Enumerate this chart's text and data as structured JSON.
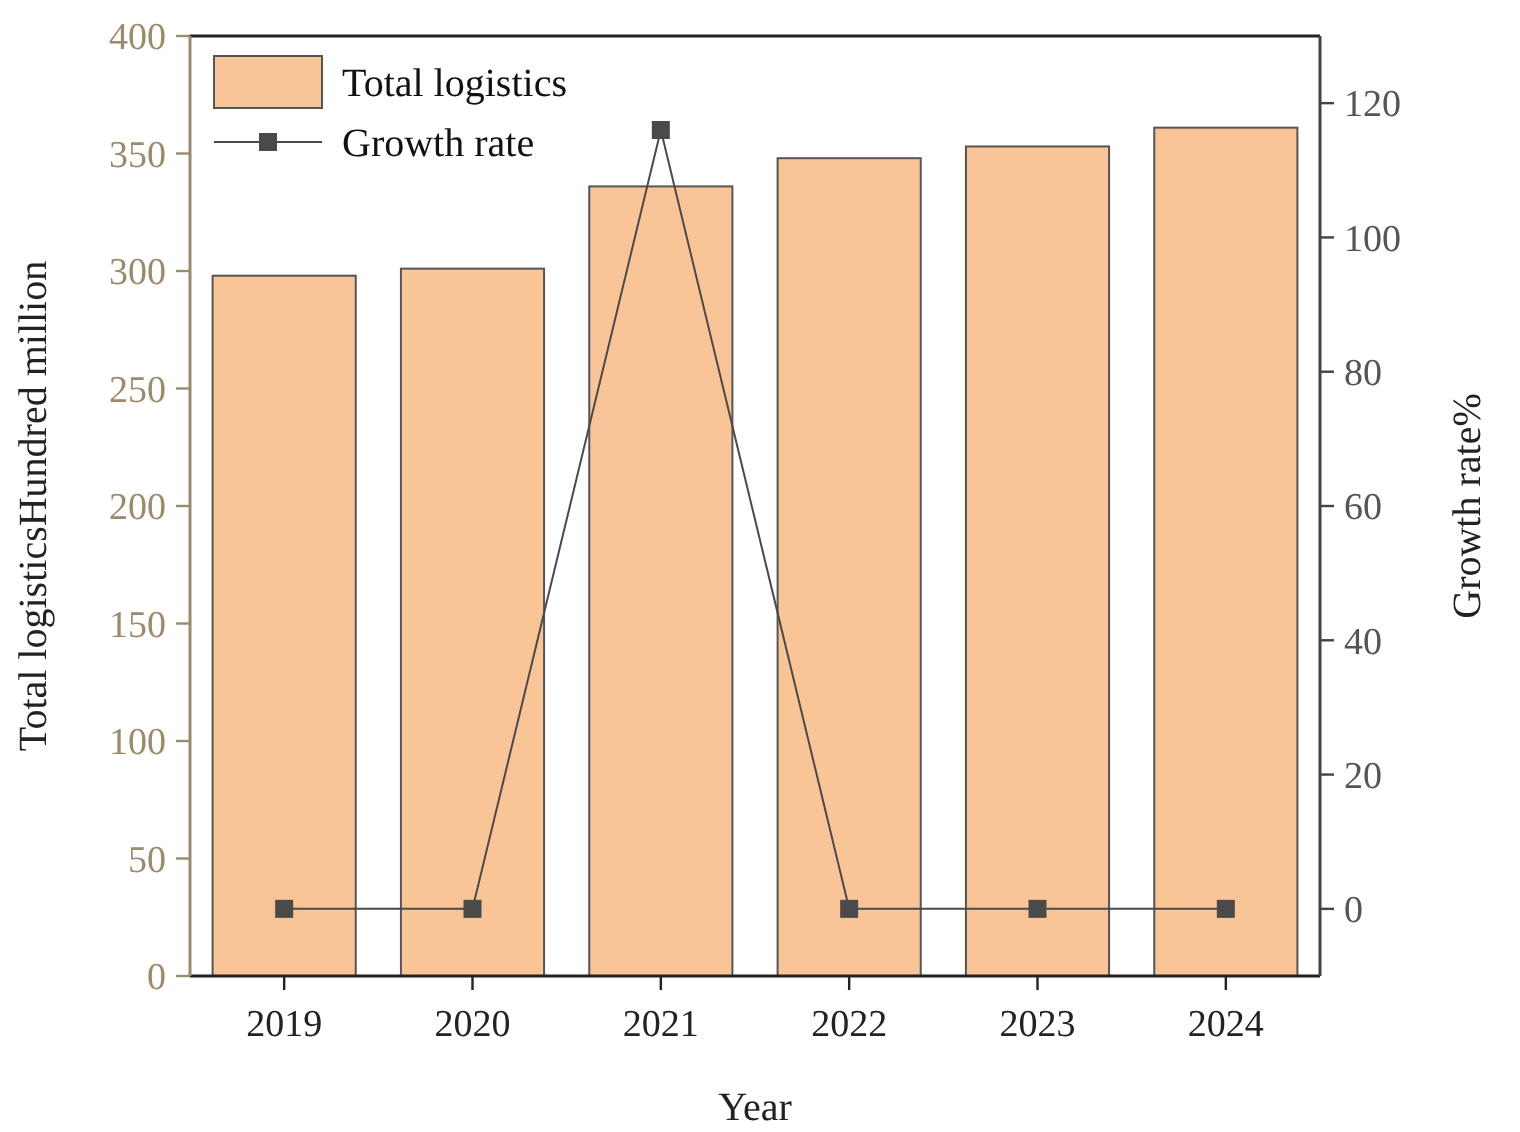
{
  "chart_data": {
    "type": "bar",
    "xlabel": "Year",
    "ylabel": "Total logisticsHundred million",
    "y2label": "Growth rate%",
    "categories": [
      "2019",
      "2020",
      "2021",
      "2022",
      "2023",
      "2024"
    ],
    "series": [
      {
        "name": "Total logistics",
        "color": "#f9c496",
        "values": [
          298,
          301,
          336,
          348,
          353,
          361
        ]
      },
      {
        "name": "Growth rate",
        "type": "line",
        "axis": "y2",
        "color": "#4a4a4a",
        "marker": "square",
        "values": [
          0,
          0,
          116,
          0,
          0,
          0
        ]
      }
    ],
    "ylim": [
      0,
      400
    ],
    "yticks": [
      0,
      50,
      100,
      150,
      200,
      250,
      300,
      350,
      400
    ],
    "y2lim": [
      -10,
      130
    ],
    "y2ticks": [
      0,
      20,
      40,
      60,
      80,
      100,
      120
    ],
    "legend": "top left",
    "grid": false
  }
}
